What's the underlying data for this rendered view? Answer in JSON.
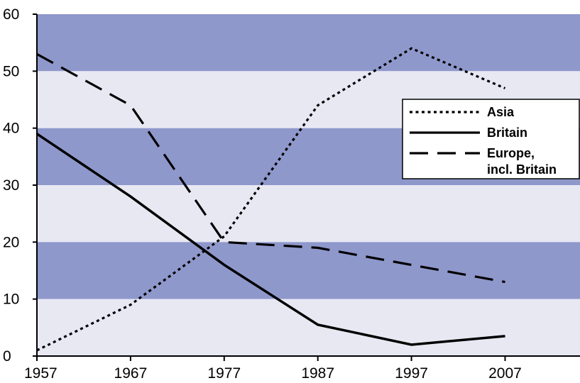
{
  "chart_data": {
    "type": "line",
    "x": [
      1957,
      1967,
      1977,
      1987,
      1997,
      2007
    ],
    "xticks": [
      "1957",
      "1967",
      "1977",
      "1987",
      "1997",
      "2007"
    ],
    "yticks": [
      "0",
      "10",
      "20",
      "30",
      "40",
      "50",
      "60"
    ],
    "xlim": [
      1957,
      2015
    ],
    "ylim": [
      0,
      60
    ],
    "grid": "alternating horizontal bands every 10 units",
    "band_colors": {
      "dark": "#8f98cb",
      "light": "#e8e8f3"
    },
    "line_color": "#000000",
    "legend_position": "right, upper-middle",
    "series": [
      {
        "name": "Asia",
        "style": "dotted",
        "values": [
          1,
          9,
          21,
          44,
          54,
          47
        ]
      },
      {
        "name": "Britain",
        "style": "solid",
        "values": [
          39,
          28,
          16,
          5.5,
          2,
          3.5
        ]
      },
      {
        "name": "Europe, incl. Britain",
        "style": "dashed",
        "values": [
          53,
          44,
          20,
          19,
          16,
          13
        ]
      }
    ],
    "legend": {
      "entries": [
        {
          "style": "dotted",
          "lines": [
            "Asia"
          ]
        },
        {
          "style": "solid",
          "lines": [
            "Britain"
          ]
        },
        {
          "style": "dashed",
          "lines": [
            "Europe,",
            "incl. Britain"
          ]
        }
      ]
    }
  }
}
